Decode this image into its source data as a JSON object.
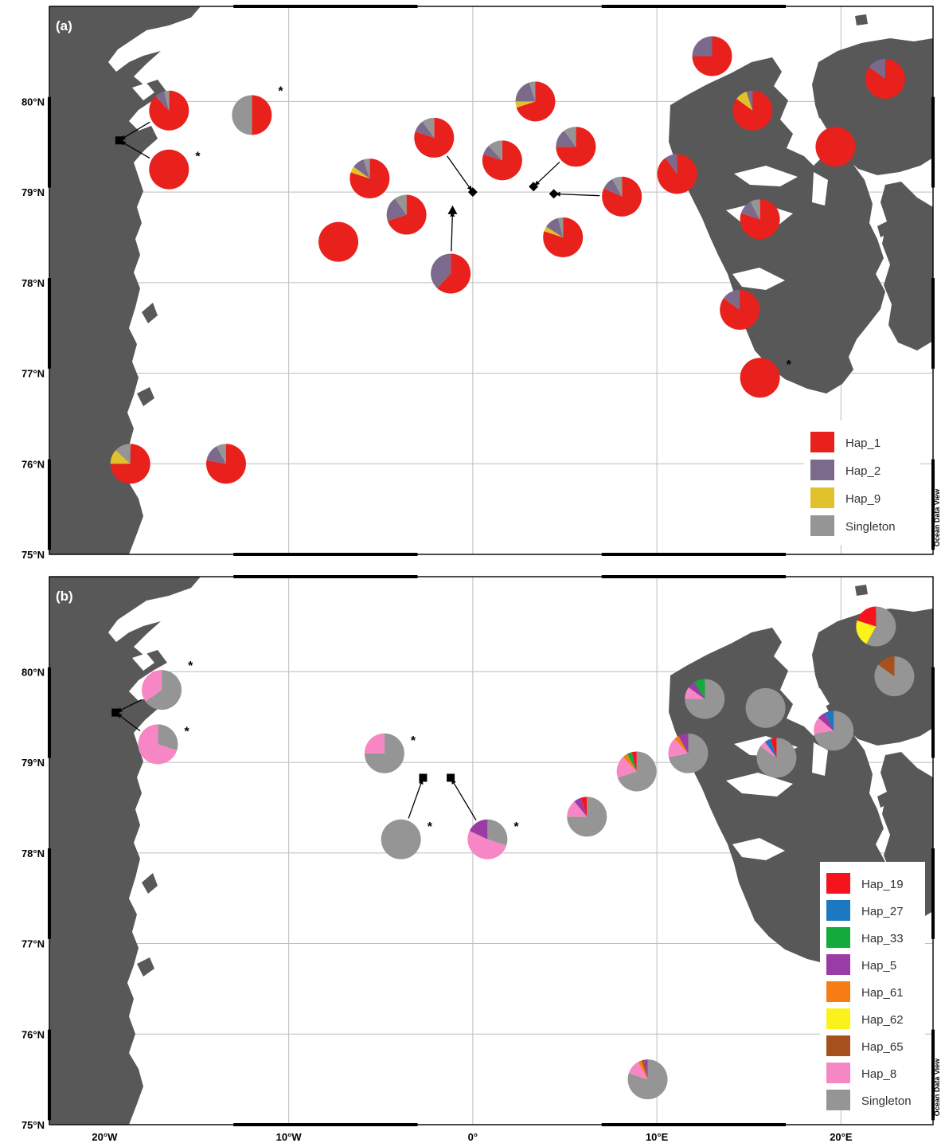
{
  "panels": [
    {
      "id": "a",
      "label": "(a)",
      "legend": [
        {
          "label": "Hap_1",
          "color": "#e8211c"
        },
        {
          "label": "Hap_2",
          "color": "#7b6a8c"
        },
        {
          "label": "Hap_9",
          "color": "#e2c22c"
        },
        {
          "label": "Singleton",
          "color": "#959595"
        }
      ],
      "stations": [
        {
          "lon": -16.5,
          "lat": 79.9,
          "star": false,
          "slices": [
            {
              "hap": "Hap_1",
              "frac": 0.88
            },
            {
              "hap": "Hap_2",
              "frac": 0.08
            },
            {
              "hap": "Singleton",
              "frac": 0.04
            }
          ]
        },
        {
          "lon": -12.0,
          "lat": 79.85,
          "star": true,
          "slices": [
            {
              "hap": "Hap_1",
              "frac": 0.5
            },
            {
              "hap": "Singleton",
              "frac": 0.5
            }
          ]
        },
        {
          "lon": -16.5,
          "lat": 79.25,
          "star": true,
          "slices": [
            {
              "hap": "Hap_1",
              "frac": 1.0
            }
          ]
        },
        {
          "lon": -2.1,
          "lat": 79.6,
          "star": false,
          "slices": [
            {
              "hap": "Hap_1",
              "frac": 0.8
            },
            {
              "hap": "Hap_2",
              "frac": 0.1
            },
            {
              "hap": "Singleton",
              "frac": 0.1
            }
          ]
        },
        {
          "lon": 3.4,
          "lat": 80.0,
          "star": false,
          "slices": [
            {
              "hap": "Hap_1",
              "frac": 0.7
            },
            {
              "hap": "Hap_9",
              "frac": 0.05
            },
            {
              "hap": "Hap_2",
              "frac": 0.2
            },
            {
              "hap": "Singleton",
              "frac": 0.05
            }
          ]
        },
        {
          "lon": 1.6,
          "lat": 79.35,
          "star": false,
          "slices": [
            {
              "hap": "Hap_1",
              "frac": 0.8
            },
            {
              "hap": "Hap_2",
              "frac": 0.08
            },
            {
              "hap": "Singleton",
              "frac": 0.12
            }
          ]
        },
        {
          "lon": 5.6,
          "lat": 79.5,
          "star": false,
          "slices": [
            {
              "hap": "Hap_1",
              "frac": 0.75
            },
            {
              "hap": "Hap_2",
              "frac": 0.15
            },
            {
              "hap": "Singleton",
              "frac": 0.1
            }
          ]
        },
        {
          "lon": -5.6,
          "lat": 79.15,
          "star": false,
          "slices": [
            {
              "hap": "Hap_1",
              "frac": 0.8
            },
            {
              "hap": "Hap_9",
              "frac": 0.05
            },
            {
              "hap": "Hap_2",
              "frac": 0.1
            },
            {
              "hap": "Singleton",
              "frac": 0.05
            }
          ]
        },
        {
          "lon": -3.6,
          "lat": 78.75,
          "star": false,
          "slices": [
            {
              "hap": "Hap_1",
              "frac": 0.7
            },
            {
              "hap": "Hap_2",
              "frac": 0.2
            },
            {
              "hap": "Singleton",
              "frac": 0.1
            }
          ]
        },
        {
          "lon": -7.3,
          "lat": 78.45,
          "star": false,
          "slices": [
            {
              "hap": "Hap_1",
              "frac": 1.0
            }
          ]
        },
        {
          "lon": -1.2,
          "lat": 78.1,
          "star": false,
          "slices": [
            {
              "hap": "Hap_1",
              "frac": 0.62
            },
            {
              "hap": "Hap_2",
              "frac": 0.38
            }
          ]
        },
        {
          "lon": 8.1,
          "lat": 78.95,
          "star": false,
          "slices": [
            {
              "hap": "Hap_1",
              "frac": 0.82
            },
            {
              "hap": "Hap_2",
              "frac": 0.1
            },
            {
              "hap": "Singleton",
              "frac": 0.08
            }
          ]
        },
        {
          "lon": 4.9,
          "lat": 78.5,
          "star": false,
          "slices": [
            {
              "hap": "Hap_1",
              "frac": 0.8
            },
            {
              "hap": "Hap_9",
              "frac": 0.04
            },
            {
              "hap": "Hap_2",
              "frac": 0.12
            },
            {
              "hap": "Singleton",
              "frac": 0.04
            }
          ]
        },
        {
          "lon": 13.0,
          "lat": 80.5,
          "star": false,
          "slices": [
            {
              "hap": "Hap_1",
              "frac": 0.75
            },
            {
              "hap": "Hap_2",
              "frac": 0.25
            }
          ]
        },
        {
          "lon": 22.4,
          "lat": 80.25,
          "star": false,
          "slices": [
            {
              "hap": "Hap_1",
              "frac": 0.85
            },
            {
              "hap": "Hap_2",
              "frac": 0.15
            }
          ]
        },
        {
          "lon": 15.2,
          "lat": 79.9,
          "star": false,
          "slices": [
            {
              "hap": "Hap_1",
              "frac": 0.85
            },
            {
              "hap": "Hap_9",
              "frac": 0.1
            },
            {
              "hap": "Hap_2",
              "frac": 0.05
            }
          ]
        },
        {
          "lon": 19.7,
          "lat": 79.5,
          "star": false,
          "slices": [
            {
              "hap": "Hap_1",
              "frac": 1.0
            }
          ]
        },
        {
          "lon": 11.1,
          "lat": 79.2,
          "star": false,
          "slices": [
            {
              "hap": "Hap_1",
              "frac": 0.9
            },
            {
              "hap": "Hap_2",
              "frac": 0.1
            }
          ]
        },
        {
          "lon": 15.6,
          "lat": 78.7,
          "star": false,
          "slices": [
            {
              "hap": "Hap_1",
              "frac": 0.8
            },
            {
              "hap": "Hap_2",
              "frac": 0.12
            },
            {
              "hap": "Singleton",
              "frac": 0.08
            }
          ]
        },
        {
          "lon": 14.5,
          "lat": 77.7,
          "star": false,
          "slices": [
            {
              "hap": "Hap_1",
              "frac": 0.85
            },
            {
              "hap": "Hap_2",
              "frac": 0.15
            }
          ]
        },
        {
          "lon": 15.6,
          "lat": 76.95,
          "star": true,
          "slices": [
            {
              "hap": "Hap_1",
              "frac": 1.0
            }
          ]
        },
        {
          "lon": -18.6,
          "lat": 76.0,
          "star": false,
          "slices": [
            {
              "hap": "Hap_1",
              "frac": 0.75
            },
            {
              "hap": "Hap_9",
              "frac": 0.12
            },
            {
              "hap": "Singleton",
              "frac": 0.13
            }
          ]
        },
        {
          "lon": -13.4,
          "lat": 76.0,
          "star": false,
          "slices": [
            {
              "hap": "Hap_1",
              "frac": 0.78
            },
            {
              "hap": "Hap_2",
              "frac": 0.14
            },
            {
              "hap": "Singleton",
              "frac": 0.08
            }
          ]
        }
      ],
      "markers": [
        {
          "shape": "square",
          "lon": -19.2,
          "lat": 79.57
        },
        {
          "shape": "diamond",
          "lon": 0.0,
          "lat": 79.0
        },
        {
          "shape": "diamond",
          "lon": 3.3,
          "lat": 79.06
        },
        {
          "shape": "diamond",
          "lon": 4.4,
          "lat": 78.98
        },
        {
          "shape": "triangle",
          "lon": -1.1,
          "lat": 78.8
        }
      ]
    },
    {
      "id": "b",
      "label": "(b)",
      "legend": [
        {
          "label": "Hap_19",
          "color": "#f5141e"
        },
        {
          "label": "Hap_27",
          "color": "#1c78c0"
        },
        {
          "label": "Hap_33",
          "color": "#14aa3c"
        },
        {
          "label": "Hap_5",
          "color": "#9a3ca6"
        },
        {
          "label": "Hap_61",
          "color": "#f77c13"
        },
        {
          "label": "Hap_62",
          "color": "#faf21a"
        },
        {
          "label": "Hap_65",
          "color": "#a6501e"
        },
        {
          "label": "Hap_8",
          "color": "#f787c4"
        },
        {
          "label": "Singleton",
          "color": "#959595"
        }
      ],
      "stations": [
        {
          "lon": -16.9,
          "lat": 79.8,
          "star": true,
          "slices": [
            {
              "hap": "Singleton",
              "frac": 0.65
            },
            {
              "hap": "Hap_8",
              "frac": 0.35
            }
          ]
        },
        {
          "lon": -17.1,
          "lat": 79.2,
          "star": true,
          "slices": [
            {
              "hap": "Singleton",
              "frac": 0.3
            },
            {
              "hap": "Hap_8",
              "frac": 0.7
            }
          ]
        },
        {
          "lon": -4.8,
          "lat": 79.1,
          "star": true,
          "slices": [
            {
              "hap": "Singleton",
              "frac": 0.75
            },
            {
              "hap": "Hap_8",
              "frac": 0.25
            }
          ]
        },
        {
          "lon": -3.9,
          "lat": 78.15,
          "star": true,
          "slices": [
            {
              "hap": "Singleton",
              "frac": 1.0
            }
          ]
        },
        {
          "lon": 0.8,
          "lat": 78.15,
          "star": true,
          "slices": [
            {
              "hap": "Singleton",
              "frac": 0.3
            },
            {
              "hap": "Hap_8",
              "frac": 0.52
            },
            {
              "hap": "Hap_5",
              "frac": 0.18
            }
          ]
        },
        {
          "lon": 6.2,
          "lat": 78.4,
          "star": false,
          "slices": [
            {
              "hap": "Singleton",
              "frac": 0.75
            },
            {
              "hap": "Hap_8",
              "frac": 0.14
            },
            {
              "hap": "Hap_5",
              "frac": 0.06
            },
            {
              "hap": "Hap_19",
              "frac": 0.05
            }
          ]
        },
        {
          "lon": 8.9,
          "lat": 78.9,
          "star": false,
          "slices": [
            {
              "hap": "Singleton",
              "frac": 0.7
            },
            {
              "hap": "Hap_8",
              "frac": 0.18
            },
            {
              "hap": "Hap_61",
              "frac": 0.04
            },
            {
              "hap": "Hap_33",
              "frac": 0.04
            },
            {
              "hap": "Hap_19",
              "frac": 0.04
            }
          ]
        },
        {
          "lon": 12.6,
          "lat": 79.7,
          "star": false,
          "slices": [
            {
              "hap": "Singleton",
              "frac": 0.75
            },
            {
              "hap": "Hap_8",
              "frac": 0.1
            },
            {
              "hap": "Hap_5",
              "frac": 0.06
            },
            {
              "hap": "Hap_33",
              "frac": 0.09
            }
          ]
        },
        {
          "lon": 15.9,
          "lat": 79.6,
          "star": false,
          "slices": [
            {
              "hap": "Singleton",
              "frac": 1.0
            }
          ]
        },
        {
          "lon": 11.7,
          "lat": 79.1,
          "star": false,
          "slices": [
            {
              "hap": "Singleton",
              "frac": 0.72
            },
            {
              "hap": "Hap_8",
              "frac": 0.16
            },
            {
              "hap": "Hap_61",
              "frac": 0.04
            },
            {
              "hap": "Hap_5",
              "frac": 0.08
            }
          ]
        },
        {
          "lon": 16.5,
          "lat": 79.05,
          "star": false,
          "slices": [
            {
              "hap": "Singleton",
              "frac": 0.85
            },
            {
              "hap": "Hap_8",
              "frac": 0.05
            },
            {
              "hap": "Hap_27",
              "frac": 0.05
            },
            {
              "hap": "Hap_19",
              "frac": 0.05
            }
          ]
        },
        {
          "lon": 19.6,
          "lat": 79.35,
          "star": false,
          "slices": [
            {
              "hap": "Singleton",
              "frac": 0.72
            },
            {
              "hap": "Hap_8",
              "frac": 0.14
            },
            {
              "hap": "Hap_5",
              "frac": 0.07
            },
            {
              "hap": "Hap_27",
              "frac": 0.07
            }
          ]
        },
        {
          "lon": 21.9,
          "lat": 80.5,
          "star": false,
          "slices": [
            {
              "hap": "Singleton",
              "frac": 0.58
            },
            {
              "hap": "Hap_62",
              "frac": 0.22
            },
            {
              "hap": "Hap_19",
              "frac": 0.2
            }
          ]
        },
        {
          "lon": 22.9,
          "lat": 79.95,
          "star": false,
          "slices": [
            {
              "hap": "Singleton",
              "frac": 0.85
            },
            {
              "hap": "Hap_65",
              "frac": 0.15
            }
          ]
        },
        {
          "lon": 9.5,
          "lat": 75.5,
          "star": false,
          "slices": [
            {
              "hap": "Singleton",
              "frac": 0.8
            },
            {
              "hap": "Hap_8",
              "frac": 0.12
            },
            {
              "hap": "Hap_61",
              "frac": 0.03
            },
            {
              "hap": "Hap_65",
              "frac": 0.02
            },
            {
              "hap": "Hap_5",
              "frac": 0.03
            }
          ]
        }
      ],
      "markers": [
        {
          "shape": "square",
          "lon": -19.4,
          "lat": 79.55
        },
        {
          "shape": "square",
          "lon": -2.7,
          "lat": 78.83
        },
        {
          "shape": "square",
          "lon": -1.2,
          "lat": 78.83
        }
      ]
    }
  ],
  "axis": {
    "lat_ticks": [
      "80°N",
      "79°N",
      "78°N",
      "77°N",
      "76°N",
      "75°N"
    ],
    "lon_ticks": [
      "20°W",
      "10°W",
      "0°",
      "10°E",
      "20°E"
    ],
    "credit": "Ocean Data View"
  },
  "colors": {
    "land": "#585858",
    "frame": "#000000",
    "grid": "#bdbdbd"
  }
}
